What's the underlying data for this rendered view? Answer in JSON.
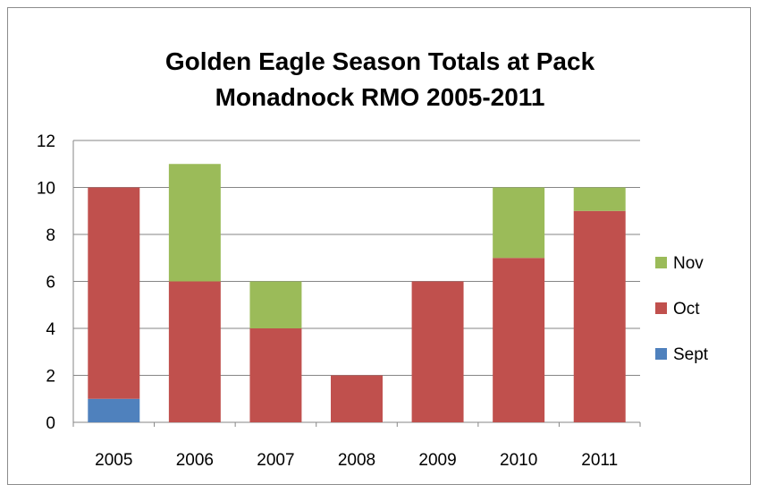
{
  "chart_data": {
    "type": "bar",
    "stacked": true,
    "title_lines": [
      "Golden Eagle Season Totals at Pack",
      "Monadnock RMO 2005-2011"
    ],
    "categories": [
      "2005",
      "2006",
      "2007",
      "2008",
      "2009",
      "2010",
      "2011"
    ],
    "series": [
      {
        "name": "Sept",
        "color": "#4f81bd",
        "values": [
          1,
          0,
          0,
          0,
          0,
          0,
          0
        ]
      },
      {
        "name": "Oct",
        "color": "#c0504d",
        "values": [
          9,
          6,
          4,
          2,
          6,
          7,
          9
        ]
      },
      {
        "name": "Nov",
        "color": "#9bbb59",
        "values": [
          0,
          5,
          2,
          0,
          0,
          3,
          1
        ]
      }
    ],
    "ylim": [
      0,
      12
    ],
    "yticks": [
      0,
      2,
      4,
      6,
      8,
      10,
      12
    ],
    "grid": true,
    "legend_position": "right",
    "legend_order": [
      "Nov",
      "Oct",
      "Sept"
    ]
  }
}
